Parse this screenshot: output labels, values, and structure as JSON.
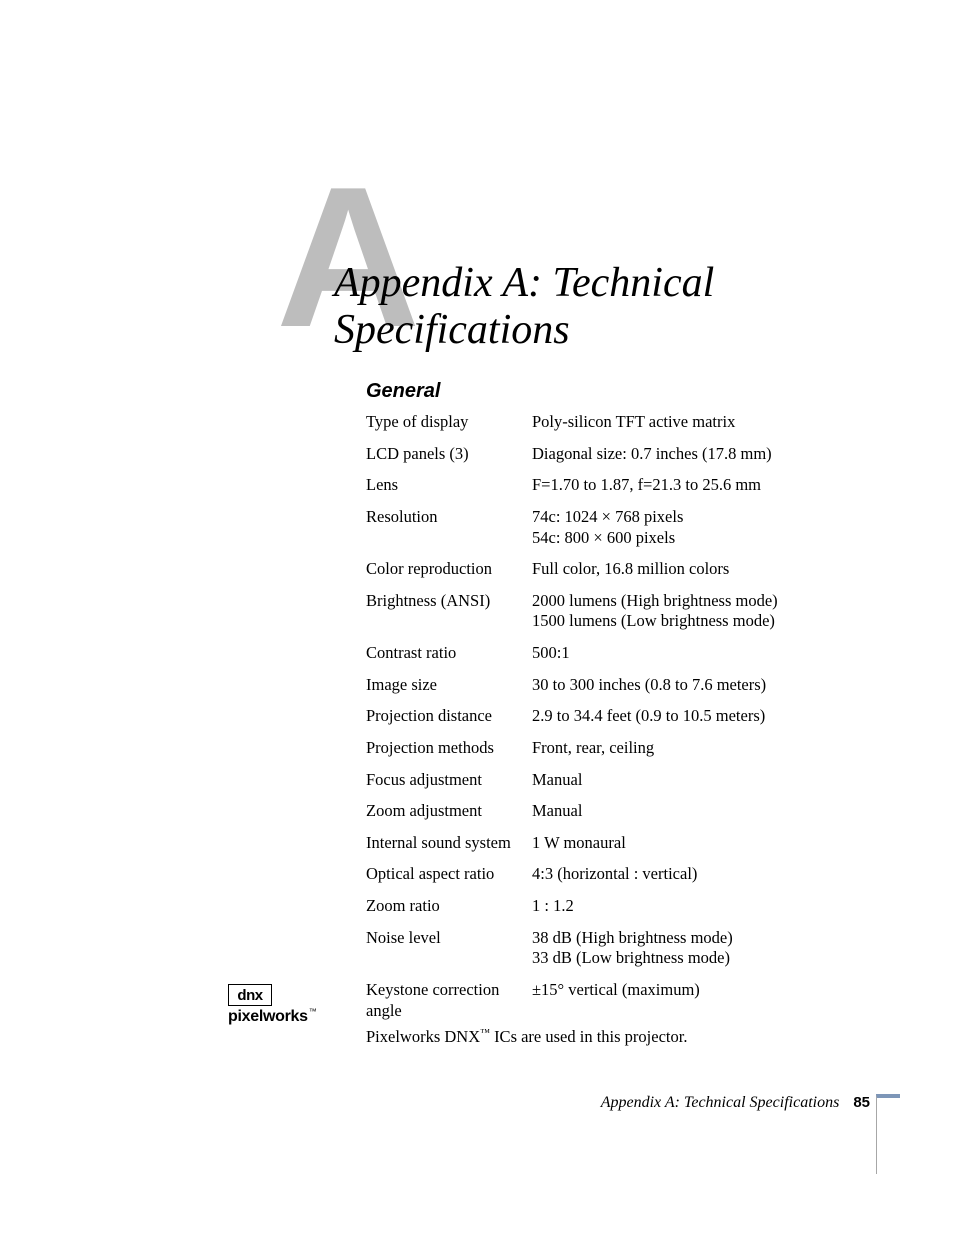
{
  "bigLetter": "A",
  "title": {
    "line1": "Appendix A: Technical",
    "line2": "Specifications"
  },
  "sectionHead": "General",
  "specs": [
    {
      "label": "Type of display",
      "value": "Poly-silicon TFT active matrix"
    },
    {
      "label": "LCD panels (3)",
      "value": "Diagonal size: 0.7 inches (17.8 mm)"
    },
    {
      "label": "Lens",
      "value": "F=1.70 to 1.87, f=21.3 to 25.6 mm"
    },
    {
      "label": "Resolution",
      "value": "74c: 1024 × 768 pixels\n54c: 800 × 600 pixels"
    },
    {
      "label": "Color reproduction",
      "value": "Full color, 16.8 million colors"
    },
    {
      "label": "Brightness (ANSI)",
      "value": "2000 lumens (High brightness mode)\n1500 lumens (Low brightness mode)"
    },
    {
      "label": "Contrast ratio",
      "value": "500:1"
    },
    {
      "label": "Image size",
      "value": "30 to 300 inches (0.8 to 7.6 meters)"
    },
    {
      "label": "Projection distance",
      "value": "2.9 to 34.4 feet (0.9 to 10.5 meters)"
    },
    {
      "label": "Projection methods",
      "value": "Front, rear, ceiling"
    },
    {
      "label": "Focus adjustment",
      "value": "Manual"
    },
    {
      "label": "Zoom adjustment",
      "value": "Manual"
    },
    {
      "label": "Internal sound system",
      "value": "1 W monaural"
    },
    {
      "label": "Optical aspect ratio",
      "value": "4:3 (horizontal : vertical)"
    },
    {
      "label": "Zoom ratio",
      "value": "1 : 1.2"
    },
    {
      "label": "Noise level",
      "value": "38 dB (High brightness mode)\n33 dB (Low brightness mode)"
    },
    {
      "label": "Keystone correction angle",
      "value": "±15° vertical (maximum)"
    }
  ],
  "footnote": {
    "prefix": "Pixelworks DNX",
    "tm": "™",
    "suffix": " ICs are used in this projector."
  },
  "logo": {
    "box": "dnx",
    "text": "pixelworks",
    "tm": "™"
  },
  "footer": {
    "title": "Appendix A: Technical Specifications",
    "page": "85"
  },
  "colors": {
    "bigLetter": "#bdbdbd",
    "edgeAccent": "#7d96b8",
    "text": "#000000",
    "bg": "#ffffff"
  },
  "fonts": {
    "body": "Georgia serif",
    "headings": "Arial sans-serif"
  }
}
